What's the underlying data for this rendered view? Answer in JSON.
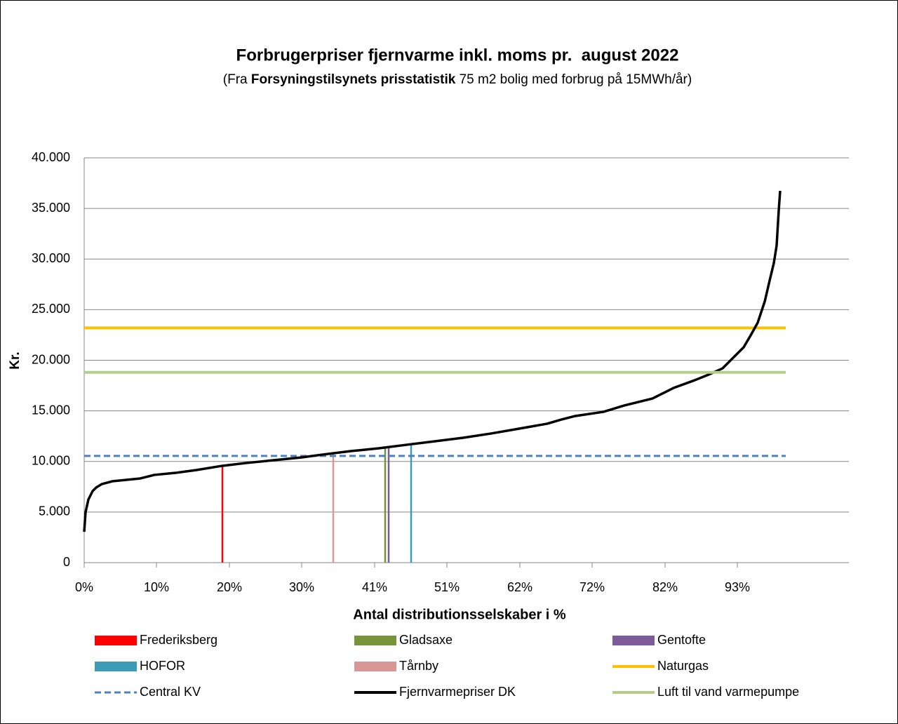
{
  "chart_data": {
    "type": "line",
    "title": "Forbrugerpriser fjernvarme inkl. moms pr.  august 2022",
    "subtitle": [
      "(Fra ",
      "Forsyningstilsynets prisstatistik",
      " 75 m2 bolig med forbrug på 15MWh/år)"
    ],
    "x_label": "Antal distributionsselskaber i %",
    "y_label": "Kr.",
    "xlim": [
      0,
      109
    ],
    "xticks": [
      {
        "value": 0,
        "label": "0%"
      },
      {
        "value": 10.3,
        "label": "10%"
      },
      {
        "value": 20.7,
        "label": "20%"
      },
      {
        "value": 31,
        "label": "30%"
      },
      {
        "value": 41.4,
        "label": "41%"
      },
      {
        "value": 51.7,
        "label": "51%"
      },
      {
        "value": 62.1,
        "label": "62%"
      },
      {
        "value": 72.4,
        "label": "72%"
      },
      {
        "value": 82.8,
        "label": "82%"
      },
      {
        "value": 93.1,
        "label": "93%"
      }
    ],
    "ylim": [
      0,
      40000
    ],
    "yticks": [
      0,
      {
        "value": 5000,
        "label": "5.000"
      },
      {
        "value": 10000,
        "label": "10.000"
      },
      {
        "value": 15000,
        "label": "15.000"
      },
      {
        "value": 20000,
        "label": "20.000"
      },
      {
        "value": 25000,
        "label": "25.000"
      },
      {
        "value": 30000,
        "label": "30.000"
      },
      {
        "value": 35000,
        "label": "35.000"
      },
      {
        "value": 40000,
        "label": "40.000"
      }
    ],
    "grid": true,
    "legend": "bottom",
    "series": [
      {
        "name": "Frederiksberg",
        "color": "#ff0000",
        "style": "vline",
        "x": [
          19.7
        ],
        "values": [
          9550
        ]
      },
      {
        "name": "Gladsaxe",
        "color": "#77933c",
        "style": "vline",
        "x": [
          42.9
        ],
        "values": [
          11350
        ]
      },
      {
        "name": "Gentofte",
        "color": "#7b5c97",
        "style": "vline",
        "x": [
          43.4
        ],
        "values": [
          11400
        ]
      },
      {
        "name": "HOFOR",
        "color": "#3c9bb7",
        "style": "vline",
        "x": [
          46.6
        ],
        "values": [
          11700
        ]
      },
      {
        "name": "Tårnby",
        "color": "#d99694",
        "style": "vline",
        "x": [
          35.5
        ],
        "values": [
          10800
        ]
      },
      {
        "name": "Naturgas",
        "color": "#ffc000",
        "style": "solid",
        "x": [
          0,
          100
        ],
        "values": [
          23200,
          23200
        ]
      },
      {
        "name": "Central KV",
        "color": "#4f81bd",
        "style": "dashed",
        "x": [
          0,
          100
        ],
        "values": [
          10550,
          10550
        ]
      },
      {
        "name": "Fjernvarmepriser DK",
        "color": "#000000",
        "style": "solid",
        "x": [
          0,
          0.2,
          0.6,
          1.2,
          1.7,
          2.5,
          4,
          6,
          8,
          10,
          13,
          16,
          19.7,
          23,
          27,
          31,
          34,
          38,
          42,
          46,
          50,
          54,
          58,
          62,
          66,
          68,
          70,
          74,
          77,
          81,
          84,
          87,
          89,
          91,
          92.5,
          94,
          95,
          96,
          97,
          97.7,
          98.3,
          98.7,
          99,
          99.2
        ],
        "values": [
          3050,
          5000,
          6240,
          7070,
          7420,
          7760,
          8040,
          8180,
          8320,
          8670,
          8870,
          9150,
          9570,
          9840,
          10120,
          10400,
          10680,
          11020,
          11300,
          11650,
          11990,
          12340,
          12760,
          13240,
          13730,
          14140,
          14490,
          14900,
          15530,
          16220,
          17260,
          18020,
          18580,
          19200,
          20240,
          21280,
          22460,
          23710,
          25790,
          27870,
          29600,
          31330,
          34800,
          36740
        ]
      },
      {
        "name": "Luft til vand varmepumpe",
        "color": "#b3cf8a",
        "style": "solid",
        "x": [
          0,
          100
        ],
        "values": [
          18800,
          18800
        ]
      }
    ]
  }
}
